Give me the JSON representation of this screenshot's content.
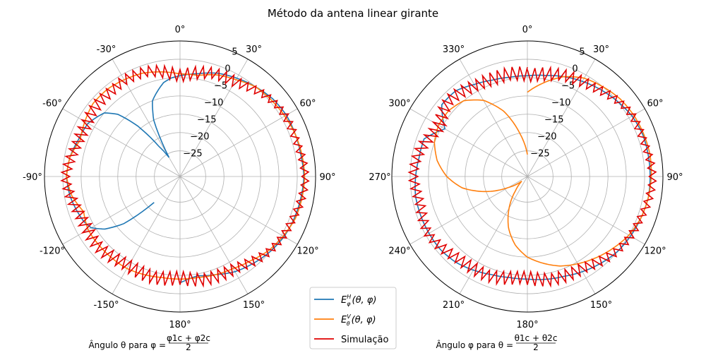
{
  "title": "Método da antena linear girante",
  "chart_data": [
    {
      "type": "polar-line",
      "theta_ticks": [
        "0°",
        "30°",
        "60°",
        "90°",
        "120°",
        "150°",
        "180°",
        "-150°",
        "-120°",
        "-90°",
        "-60°",
        "-30°"
      ],
      "r_ticks": [
        "−25",
        "−20",
        "−15",
        "−10",
        "−5",
        "0",
        "5"
      ],
      "r_tick_values": [
        -25,
        -20,
        -15,
        -10,
        -5,
        0,
        5
      ],
      "rlim": [
        -32,
        5
      ],
      "xlabel_main": "Ângulo θ para φ =",
      "xlabel_num": "φ1c + φ2c",
      "xlabel_den": "2",
      "series": [
        {
          "name": "E_φ^H(θ,φ)",
          "color": "#1f77b4",
          "angles_deg": [
            -135,
            -130,
            -125,
            -120,
            -115,
            -110,
            -100,
            -90,
            -80,
            -70,
            -60,
            -50,
            -45,
            -40,
            -35,
            -30,
            -25,
            -20,
            -15,
            -10,
            -5,
            0,
            5,
            10,
            20,
            30,
            40,
            50,
            60,
            70,
            80,
            90,
            100,
            110,
            120,
            130,
            140,
            150,
            160,
            170,
            175,
            180
          ],
          "values": [
            -22,
            -12,
            -7,
            -4,
            -3,
            -2.5,
            -1.5,
            -1,
            -1.5,
            -2.5,
            -3,
            -5,
            -8,
            -14,
            -22,
            -26,
            -15,
            -10,
            -8,
            -6,
            -5,
            -4.5,
            -4,
            -3.5,
            -2,
            -1,
            0,
            1,
            1.5,
            1.5,
            1.5,
            1.8,
            1.5,
            1.2,
            0.8,
            0,
            -1,
            -2,
            -3.5,
            -4.5,
            -4,
            -3
          ]
        },
        {
          "name": "E_θ^V(θ,φ)",
          "color": "#ff7f0e",
          "angles_deg": [
            -180,
            -170,
            -160,
            -150,
            -140,
            -130,
            -120,
            -110,
            -100,
            -90,
            -80,
            -70,
            -60,
            -50,
            -40,
            -30,
            -20,
            -10,
            0,
            10,
            20,
            30,
            40,
            50,
            60,
            70,
            80,
            90,
            100,
            110,
            120,
            130,
            140,
            150,
            160,
            170,
            180
          ],
          "values": [
            -4,
            -4,
            -3.5,
            -3,
            -3,
            -3,
            -3,
            -4,
            -2,
            -1,
            -1.5,
            -3,
            -2,
            -1,
            -1,
            -1.5,
            -2,
            -3,
            -4,
            -4,
            -2.5,
            -1.5,
            0,
            0.5,
            1,
            1.5,
            1.8,
            2,
            1.8,
            1.5,
            0.5,
            -0.5,
            -2,
            -3,
            -3.5,
            -4,
            -4
          ]
        },
        {
          "name": "Simulação",
          "color": "#e00000",
          "noisy": true,
          "angles_deg": [
            -180,
            -165,
            -150,
            -135,
            -120,
            -105,
            -90,
            -75,
            -60,
            -45,
            -30,
            -15,
            0,
            15,
            30,
            45,
            60,
            75,
            90,
            105,
            120,
            135,
            150,
            165,
            180
          ],
          "values": [
            -4,
            -4,
            -3.5,
            -3,
            -3,
            -2,
            -1,
            -2,
            -3,
            -2,
            -1.5,
            -2.5,
            -4,
            -3,
            -2,
            0,
            1,
            1.5,
            2,
            1.5,
            0.5,
            -1,
            -2.5,
            -3.5,
            -4
          ]
        }
      ]
    },
    {
      "type": "polar-line",
      "theta_ticks": [
        "0°",
        "30°",
        "60°",
        "90°",
        "120°",
        "150°",
        "180°",
        "210°",
        "240°",
        "270°",
        "300°",
        "330°"
      ],
      "r_ticks": [
        "−25",
        "−20",
        "−15",
        "−10",
        "−5",
        "0",
        "5"
      ],
      "r_tick_values": [
        -25,
        -20,
        -15,
        -10,
        -5,
        0,
        5
      ],
      "rlim": [
        -32,
        5
      ],
      "xlabel_main": "Ângulo φ para θ =",
      "xlabel_num": "θ1c + θ2c",
      "xlabel_den": "2",
      "series": [
        {
          "name": "E_φ^H(θ,φ)",
          "color": "#1f77b4",
          "angles_deg": [
            0,
            10,
            20,
            30,
            40,
            50,
            60,
            70,
            80,
            90,
            100,
            110,
            120,
            130,
            140,
            150,
            160,
            170,
            180,
            190,
            200,
            210,
            220,
            230,
            240,
            250,
            260,
            270,
            280,
            290,
            300,
            310,
            315,
            320,
            330,
            340,
            350,
            360
          ],
          "values": [
            -4.5,
            -4,
            -3,
            -2,
            -1,
            0,
            1,
            1.5,
            1.5,
            1.5,
            1.5,
            1,
            0.5,
            0,
            -1,
            -2,
            -3,
            -3.5,
            -4,
            -4,
            -3.5,
            -2.5,
            -1.5,
            -1,
            -1,
            -1,
            -1,
            -1.5,
            -2,
            -2,
            -6,
            -1.5,
            -1.5,
            -1.5,
            -3,
            -4,
            -4.5,
            -4.5
          ]
        },
        {
          "name": "E_θ^V(θ,φ)",
          "color": "#ff7f0e",
          "angles_deg": [
            0,
            10,
            20,
            30,
            40,
            50,
            60,
            70,
            80,
            90,
            100,
            110,
            120,
            130,
            140,
            150,
            160,
            170,
            180,
            190,
            200,
            210,
            220,
            230,
            240,
            250,
            260,
            270,
            280,
            290,
            300,
            310,
            320,
            330,
            340,
            350,
            360
          ],
          "values": [
            -9,
            -6,
            -3,
            -1,
            0,
            1,
            1.5,
            1.8,
            2,
            1.8,
            1.5,
            1,
            0,
            -1.5,
            -3,
            -4.5,
            -6,
            -8,
            -10,
            -13,
            -17,
            -22,
            -27,
            -30,
            -26,
            -20,
            -14,
            -10,
            -7,
            -5,
            -4,
            -4,
            -5,
            -8,
            -13,
            -20,
            -26
          ]
        },
        {
          "name": "Simulação",
          "color": "#e00000",
          "noisy": true,
          "angles_deg": [
            0,
            15,
            30,
            45,
            60,
            75,
            90,
            105,
            120,
            135,
            150,
            165,
            180,
            195,
            210,
            225,
            240,
            255,
            270,
            285,
            300,
            315,
            330,
            345,
            360
          ],
          "values": [
            -4,
            -3.5,
            -2,
            -0.5,
            1,
            1.5,
            2,
            1.5,
            0.5,
            -1,
            -2.5,
            -3.5,
            -4,
            -3.5,
            -3,
            -2,
            -1,
            -1.5,
            -1,
            -2,
            -4,
            -2.5,
            -3,
            -4,
            -4
          ]
        }
      ]
    }
  ],
  "legend": [
    {
      "label_base": "E",
      "label_sub": "φ",
      "label_sup": "H",
      "label_rest": "(θ, φ)",
      "color": "#1f77b4"
    },
    {
      "label_base": "E",
      "label_sub": "θ",
      "label_sup": "V",
      "label_rest": "(θ, φ)",
      "color": "#ff7f0e"
    },
    {
      "label_text": "Simulação",
      "color": "#e00000"
    }
  ]
}
